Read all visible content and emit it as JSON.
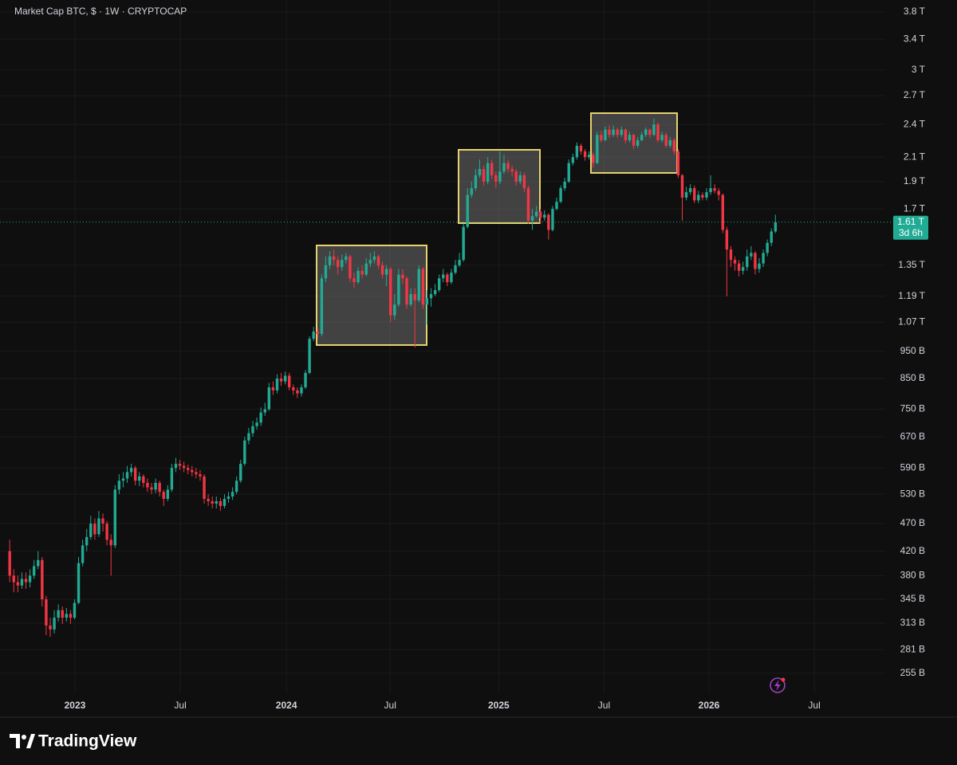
{
  "chart_data": {
    "type": "candlestick",
    "title": "Market Cap BTC, $ · 1W · CRYPTOCAP",
    "open": [
      420,
      380,
      370,
      365,
      375,
      370,
      380,
      395,
      405,
      345,
      310,
      305,
      320,
      330,
      320,
      325,
      320,
      340,
      400,
      430,
      445,
      470,
      450,
      480,
      470,
      440,
      430,
      540,
      560,
      565,
      580,
      590,
      560,
      570,
      555,
      545,
      540,
      555,
      535,
      520,
      540,
      590,
      600,
      595,
      590,
      585,
      580,
      575,
      570,
      520,
      515,
      510,
      515,
      505,
      520,
      525,
      535,
      560,
      600,
      660,
      680,
      700,
      710,
      740,
      750,
      820,
      810,
      850,
      840,
      860,
      820,
      810,
      800,
      820,
      870,
      1000,
      1030,
      1020,
      1280,
      1350,
      1400,
      1380,
      1340,
      1380,
      1400,
      1280,
      1260,
      1320,
      1300,
      1360,
      1380,
      1400,
      1350,
      1300,
      1330,
      1100,
      1150,
      1300,
      1280,
      1150,
      1200,
      1170,
      1330,
      1150,
      1180,
      1200,
      1220,
      1280,
      1300,
      1260,
      1310,
      1350,
      1380,
      1580,
      1800,
      1850,
      1950,
      2000,
      1900,
      2050,
      1950,
      1900,
      1980,
      2050,
      2000,
      1980,
      1900,
      1950,
      1850,
      1620,
      1650,
      1680,
      1640,
      1660,
      1560,
      1700,
      1750,
      1850,
      1900,
      2050,
      2100,
      2200,
      2150,
      2100,
      2120,
      2050,
      2300,
      2250,
      2350,
      2300,
      2350,
      2300,
      2350,
      2250,
      2300,
      2200,
      2250,
      2300,
      2350,
      2300,
      2400,
      2250,
      2300,
      2200,
      2250,
      2150,
      1950,
      1780,
      1820,
      1850,
      1760,
      1800,
      1780,
      1820,
      1850,
      1830,
      1800,
      1560,
      1440,
      1380,
      1360,
      1320,
      1340,
      1400,
      1420,
      1330,
      1360,
      1420,
      1480,
      1550
    ],
    "high": [
      440,
      390,
      380,
      385,
      385,
      390,
      405,
      420,
      410,
      350,
      320,
      330,
      338,
      335,
      333,
      330,
      345,
      410,
      440,
      460,
      485,
      480,
      495,
      490,
      475,
      450,
      550,
      575,
      580,
      595,
      600,
      595,
      580,
      575,
      565,
      555,
      565,
      560,
      540,
      550,
      600,
      615,
      610,
      605,
      598,
      595,
      590,
      585,
      575,
      530,
      525,
      525,
      522,
      530,
      535,
      545,
      570,
      610,
      670,
      695,
      715,
      725,
      755,
      770,
      835,
      840,
      865,
      870,
      875,
      870,
      830,
      820,
      830,
      880,
      1010,
      1050,
      1045,
      1300,
      1400,
      1430,
      1440,
      1400,
      1410,
      1420,
      1410,
      1310,
      1340,
      1350,
      1390,
      1420,
      1430,
      1410,
      1370,
      1350,
      1340,
      1200,
      1330,
      1330,
      1290,
      1230,
      1230,
      1350,
      1340,
      1220,
      1230,
      1250,
      1300,
      1330,
      1310,
      1330,
      1380,
      1420,
      1600,
      1850,
      1900,
      2000,
      2080,
      2030,
      2100,
      2080,
      1980,
      2150,
      2120,
      2080,
      2030,
      2000,
      1980,
      1970,
      1870,
      1700,
      1720,
      1700,
      1690,
      1670,
      1720,
      1780,
      1870,
      1930,
      2080,
      2130,
      2230,
      2220,
      2170,
      2150,
      2140,
      2330,
      2340,
      2380,
      2390,
      2390,
      2370,
      2380,
      2360,
      2330,
      2310,
      2280,
      2330,
      2370,
      2360,
      2460,
      2420,
      2330,
      2320,
      2280,
      2270,
      2170,
      1960,
      1860,
      1880,
      1870,
      1830,
      1820,
      1850,
      1950,
      1880,
      1850,
      1810,
      1580,
      1460,
      1400,
      1380,
      1370,
      1440,
      1460,
      1430,
      1390,
      1440,
      1500,
      1570,
      1660
    ],
    "low": [
      370,
      355,
      355,
      360,
      360,
      362,
      375,
      390,
      335,
      298,
      296,
      300,
      315,
      312,
      315,
      312,
      318,
      338,
      395,
      420,
      440,
      440,
      445,
      455,
      430,
      380,
      425,
      530,
      545,
      555,
      570,
      550,
      548,
      545,
      535,
      530,
      532,
      525,
      505,
      515,
      535,
      580,
      585,
      580,
      575,
      570,
      565,
      560,
      510,
      505,
      500,
      500,
      495,
      500,
      512,
      518,
      530,
      555,
      595,
      650,
      670,
      690,
      700,
      730,
      745,
      795,
      800,
      825,
      830,
      810,
      795,
      785,
      790,
      815,
      865,
      990,
      1000,
      1010,
      1260,
      1330,
      1350,
      1300,
      1320,
      1360,
      1260,
      1230,
      1250,
      1280,
      1290,
      1340,
      1360,
      1330,
      1280,
      1240,
      1070,
      1080,
      1140,
      1250,
      1130,
      1140,
      965,
      1160,
      1130,
      1060,
      1140,
      1190,
      1210,
      1260,
      1240,
      1250,
      1300,
      1340,
      1370,
      1570,
      1780,
      1830,
      1930,
      1870,
      1880,
      1920,
      1850,
      1880,
      1960,
      1970,
      1940,
      1870,
      1880,
      1820,
      1600,
      1560,
      1640,
      1600,
      1620,
      1500,
      1550,
      1690,
      1740,
      1830,
      1890,
      2030,
      2080,
      2120,
      2070,
      2080,
      2010,
      2040,
      2230,
      2240,
      2270,
      2280,
      2270,
      2280,
      2220,
      2230,
      2170,
      2180,
      2240,
      2280,
      2270,
      2290,
      2230,
      2230,
      2180,
      2180,
      2120,
      1930,
      1620,
      1760,
      1800,
      1740,
      1740,
      1760,
      1760,
      1800,
      1810,
      1760,
      1540,
      1190,
      1340,
      1320,
      1290,
      1300,
      1320,
      1380,
      1300,
      1310,
      1340,
      1400,
      1460,
      1540
    ],
    "close": [
      380,
      370,
      365,
      375,
      370,
      380,
      395,
      405,
      345,
      310,
      305,
      320,
      330,
      320,
      325,
      320,
      340,
      400,
      430,
      445,
      470,
      450,
      480,
      470,
      440,
      430,
      540,
      560,
      565,
      580,
      590,
      560,
      570,
      555,
      545,
      540,
      555,
      535,
      520,
      540,
      590,
      600,
      595,
      590,
      585,
      580,
      575,
      570,
      520,
      515,
      510,
      515,
      505,
      520,
      525,
      535,
      560,
      600,
      660,
      680,
      700,
      710,
      740,
      750,
      820,
      810,
      850,
      840,
      860,
      820,
      810,
      800,
      820,
      870,
      1000,
      1030,
      1020,
      1280,
      1350,
      1400,
      1380,
      1340,
      1380,
      1400,
      1280,
      1260,
      1320,
      1300,
      1360,
      1380,
      1400,
      1350,
      1300,
      1330,
      1100,
      1150,
      1300,
      1280,
      1150,
      1200,
      1170,
      1330,
      1150,
      1180,
      1200,
      1220,
      1280,
      1300,
      1260,
      1310,
      1350,
      1380,
      1580,
      1800,
      1850,
      1950,
      2000,
      1900,
      2050,
      1950,
      1900,
      1980,
      2050,
      2000,
      1980,
      1900,
      1950,
      1850,
      1620,
      1650,
      1680,
      1640,
      1660,
      1560,
      1700,
      1750,
      1850,
      1900,
      2050,
      2100,
      2200,
      2150,
      2100,
      2120,
      2050,
      2300,
      2250,
      2350,
      2300,
      2350,
      2300,
      2350,
      2250,
      2300,
      2200,
      2250,
      2300,
      2350,
      2300,
      2400,
      2250,
      2300,
      2200,
      2250,
      2150,
      1950,
      1780,
      1820,
      1850,
      1760,
      1800,
      1780,
      1820,
      1850,
      1830,
      1800,
      1560,
      1440,
      1380,
      1360,
      1320,
      1340,
      1400,
      1420,
      1330,
      1360,
      1420,
      1480,
      1550,
      1610
    ],
    "up_color": "#22ab94",
    "down_color": "#f23645",
    "log_scale": true,
    "grid": true,
    "ylim": [
      235,
      3990
    ],
    "yticks": [
      {
        "value": 3800,
        "label": "3.8 T"
      },
      {
        "value": 3400,
        "label": "3.4 T"
      },
      {
        "value": 3000,
        "label": "3 T"
      },
      {
        "value": 2700,
        "label": "2.7 T"
      },
      {
        "value": 2400,
        "label": "2.4 T"
      },
      {
        "value": 2100,
        "label": "2.1 T"
      },
      {
        "value": 1900,
        "label": "1.9 T"
      },
      {
        "value": 1700,
        "label": "1.7 T"
      },
      {
        "value": 1350,
        "label": "1.35 T"
      },
      {
        "value": 1190,
        "label": "1.19 T"
      },
      {
        "value": 1070,
        "label": "1.07 T"
      },
      {
        "value": 950,
        "label": "950 B"
      },
      {
        "value": 850,
        "label": "850 B"
      },
      {
        "value": 750,
        "label": "750 B"
      },
      {
        "value": 670,
        "label": "670 B"
      },
      {
        "value": 590,
        "label": "590 B"
      },
      {
        "value": 530,
        "label": "530 B"
      },
      {
        "value": 470,
        "label": "470 B"
      },
      {
        "value": 420,
        "label": "420 B"
      },
      {
        "value": 380,
        "label": "380 B"
      },
      {
        "value": 345,
        "label": "345 B"
      },
      {
        "value": 313,
        "label": "313 B"
      },
      {
        "value": 281,
        "label": "281 B"
      },
      {
        "value": 255,
        "label": "255 B"
      }
    ],
    "xlim": [
      -2.4,
      216.1
    ],
    "xticks": [
      {
        "value": 16.1,
        "label": "2023"
      },
      {
        "value": 42.1,
        "label": "Jul"
      },
      {
        "value": 68.3,
        "label": "2024"
      },
      {
        "value": 93.9,
        "label": "Jul"
      },
      {
        "value": 120.7,
        "label": "2025"
      },
      {
        "value": 146.7,
        "label": "Jul"
      },
      {
        "value": 172.6,
        "label": "2026"
      },
      {
        "value": 198.6,
        "label": "Jul"
      }
    ],
    "last_price": {
      "value": 1610,
      "label": "1.61 T"
    },
    "countdown": "3d 6h"
  },
  "brand": "TradingView"
}
